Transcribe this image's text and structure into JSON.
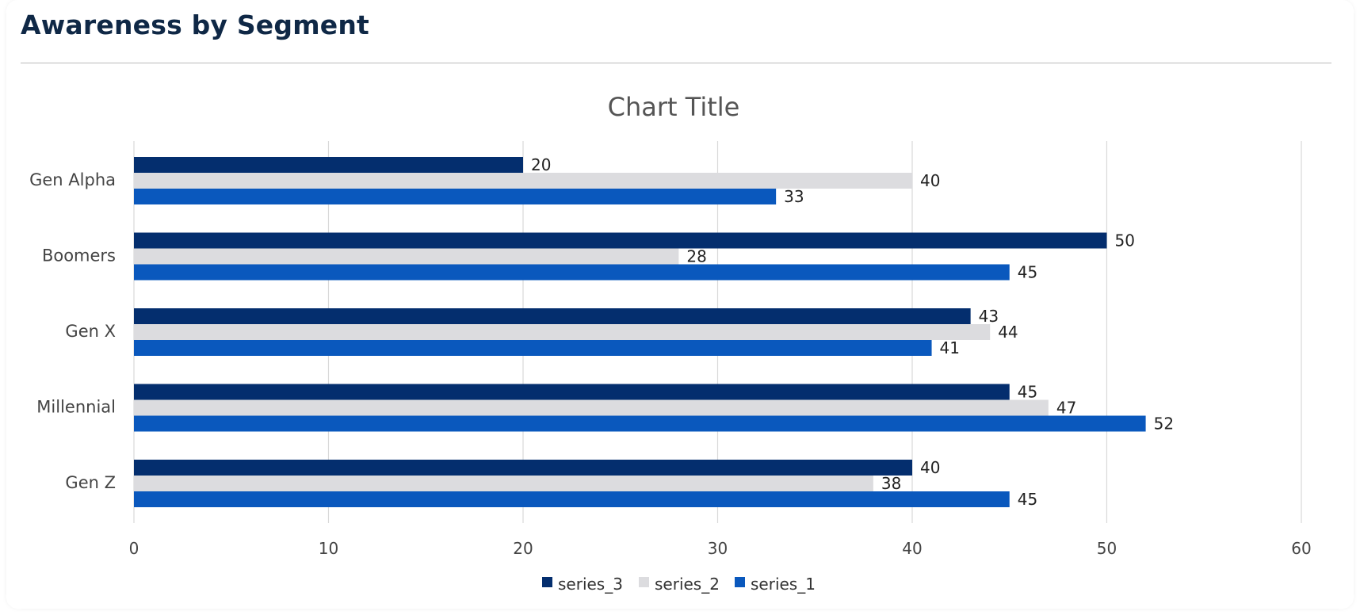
{
  "header": {
    "title": "Awareness by Segment"
  },
  "chart_data": {
    "type": "bar",
    "orientation": "horizontal",
    "title": "Chart Title",
    "categories": [
      "Gen Alpha",
      "Boomers",
      "Gen X",
      "Millennial",
      "Gen Z"
    ],
    "series": [
      {
        "name": "series_3",
        "color": "#042e6e",
        "values": [
          20,
          50,
          43,
          45,
          40
        ]
      },
      {
        "name": "series_2",
        "color": "#dcdcdf",
        "values": [
          40,
          28,
          44,
          47,
          38
        ]
      },
      {
        "name": "series_1",
        "color": "#0a58bd",
        "values": [
          33,
          45,
          41,
          52,
          45
        ]
      }
    ],
    "xlim": [
      0,
      60
    ],
    "xticks": [
      0,
      10,
      20,
      30,
      40,
      50,
      60
    ],
    "grid": true,
    "data_labels": true,
    "legend": "bottom"
  }
}
